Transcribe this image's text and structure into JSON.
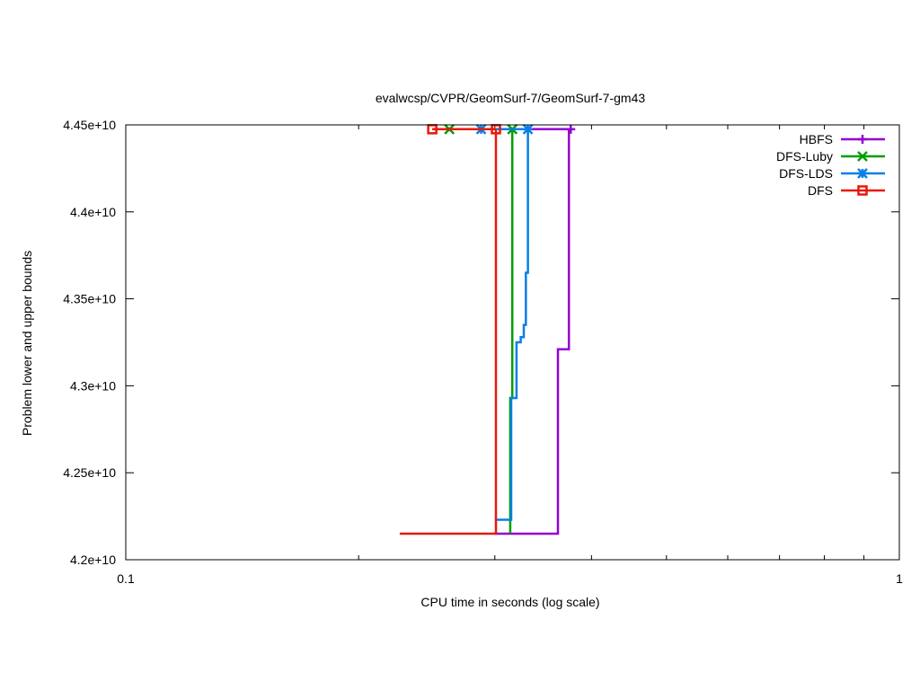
{
  "chart_data": {
    "type": "line",
    "title": "evalwcsp/CVPR/GeomSurf-7/GeomSurf-7-gm43",
    "xlabel": "CPU time in seconds (log scale)",
    "ylabel": "Problem lower and upper bounds",
    "x_scale": "log",
    "xlim": [
      0.1,
      1
    ],
    "ylim": [
      42000000000,
      44500000000
    ],
    "x_ticks": [
      {
        "value": 0.1,
        "label": "0.1"
      },
      {
        "value": 1,
        "label": "1"
      }
    ],
    "y_ticks": [
      {
        "value": 42000000000,
        "label": "4.2e+10"
      },
      {
        "value": 42500000000,
        "label": "4.25e+10"
      },
      {
        "value": 43000000000,
        "label": "4.3e+10"
      },
      {
        "value": 43500000000,
        "label": "4.35e+10"
      },
      {
        "value": 44000000000,
        "label": "4.4e+10"
      },
      {
        "value": 44500000000,
        "label": "4.45e+10"
      }
    ],
    "grid": false,
    "legend_position": "top-right",
    "series": [
      {
        "name": "HBFS",
        "color": "#9400d3",
        "marker": "plus",
        "lower": [
          [
            0.3,
            42150000000
          ],
          [
            0.362,
            42150000000
          ],
          [
            0.362,
            43210000000
          ],
          [
            0.374,
            43210000000
          ],
          [
            0.374,
            44470000000
          ]
        ],
        "upper": [
          [
            0.3,
            44475000000
          ],
          [
            0.376,
            44475000000
          ]
        ],
        "markers": [
          [
            0.376,
            44475000000
          ]
        ]
      },
      {
        "name": "DFS-Luby",
        "color": "#009e00",
        "marker": "x",
        "lower": [
          [
            0.314,
            42150000000
          ],
          [
            0.314,
            42930000000
          ],
          [
            0.316,
            42930000000
          ],
          [
            0.316,
            44470000000
          ]
        ],
        "upper": [
          [
            0.262,
            44475000000
          ],
          [
            0.316,
            44475000000
          ]
        ],
        "markers": [
          [
            0.262,
            44475000000
          ],
          [
            0.316,
            44475000000
          ]
        ]
      },
      {
        "name": "DFS-LDS",
        "color": "#0a7fe6",
        "marker": "star",
        "lower": [
          [
            0.3,
            42230000000
          ],
          [
            0.315,
            42230000000
          ],
          [
            0.315,
            42930000000
          ],
          [
            0.32,
            42930000000
          ],
          [
            0.32,
            43250000000
          ],
          [
            0.324,
            43250000000
          ],
          [
            0.324,
            43280000000
          ],
          [
            0.327,
            43280000000
          ],
          [
            0.327,
            43350000000
          ],
          [
            0.329,
            43350000000
          ],
          [
            0.329,
            43650000000
          ],
          [
            0.331,
            43650000000
          ],
          [
            0.331,
            44470000000
          ]
        ],
        "upper": [
          [
            0.288,
            44475000000
          ],
          [
            0.331,
            44475000000
          ]
        ],
        "markers": [
          [
            0.288,
            44475000000
          ],
          [
            0.331,
            44475000000
          ]
        ]
      },
      {
        "name": "DFS",
        "color": "#e6190a",
        "marker": "square",
        "lower": [
          [
            0.226,
            42150000000
          ],
          [
            0.301,
            42150000000
          ],
          [
            0.301,
            44470000000
          ]
        ],
        "upper": [
          [
            0.249,
            44475000000
          ],
          [
            0.301,
            44475000000
          ]
        ],
        "markers": [
          [
            0.249,
            44475000000
          ],
          [
            0.301,
            44475000000
          ]
        ]
      }
    ]
  }
}
